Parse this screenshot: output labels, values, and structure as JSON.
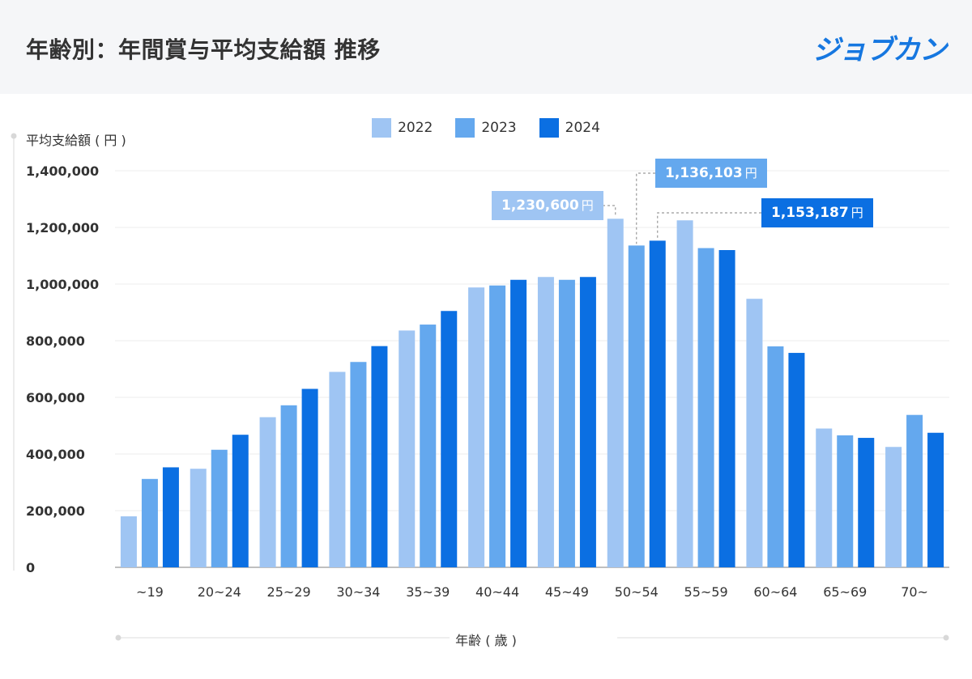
{
  "header": {
    "title": "年齢別：年間賞与平均支給額 推移",
    "logo": "ジョブカン"
  },
  "colors": {
    "accent": "#1677e0",
    "series_2022": "#9fc5f3",
    "series_2023": "#64a8ee",
    "series_2024": "#0b6fe2"
  },
  "chart_data": {
    "type": "bar",
    "ylabel": "平均支給額 ( 円 )",
    "xlabel": "年齢 ( 歳 )",
    "ylim": [
      0,
      1400000
    ],
    "yticks": [
      "0",
      "200,000",
      "400,000",
      "600,000",
      "800,000",
      "1,000,000",
      "1,200,000",
      "1,400,000"
    ],
    "ytick_values": [
      0,
      200000,
      400000,
      600000,
      800000,
      1000000,
      1200000,
      1400000
    ],
    "legend_position": "top-center",
    "grid": true,
    "categories": [
      "~19",
      "20~24",
      "25~29",
      "30~34",
      "35~39",
      "40~44",
      "45~49",
      "50~54",
      "55~59",
      "60~64",
      "65~69",
      "70~"
    ],
    "series": [
      {
        "name": "2022",
        "values": [
          180000,
          348000,
          530000,
          690000,
          836000,
          988000,
          1025000,
          1230600,
          1225000,
          948000,
          490000,
          425000
        ]
      },
      {
        "name": "2023",
        "values": [
          312000,
          415000,
          572000,
          725000,
          857000,
          995000,
          1015000,
          1136103,
          1127000,
          780000,
          466000,
          538000
        ]
      },
      {
        "name": "2024",
        "values": [
          353000,
          468000,
          630000,
          781000,
          905000,
          1015000,
          1025000,
          1153187,
          1120000,
          757000,
          457000,
          475000
        ]
      }
    ],
    "annotations": [
      {
        "text": "1,230,600",
        "unit": "円",
        "series": "2022",
        "category": "50~54"
      },
      {
        "text": "1,136,103",
        "unit": "円",
        "series": "2023",
        "category": "50~54"
      },
      {
        "text": "1,153,187",
        "unit": "円",
        "series": "2024",
        "category": "50~54"
      }
    ]
  }
}
